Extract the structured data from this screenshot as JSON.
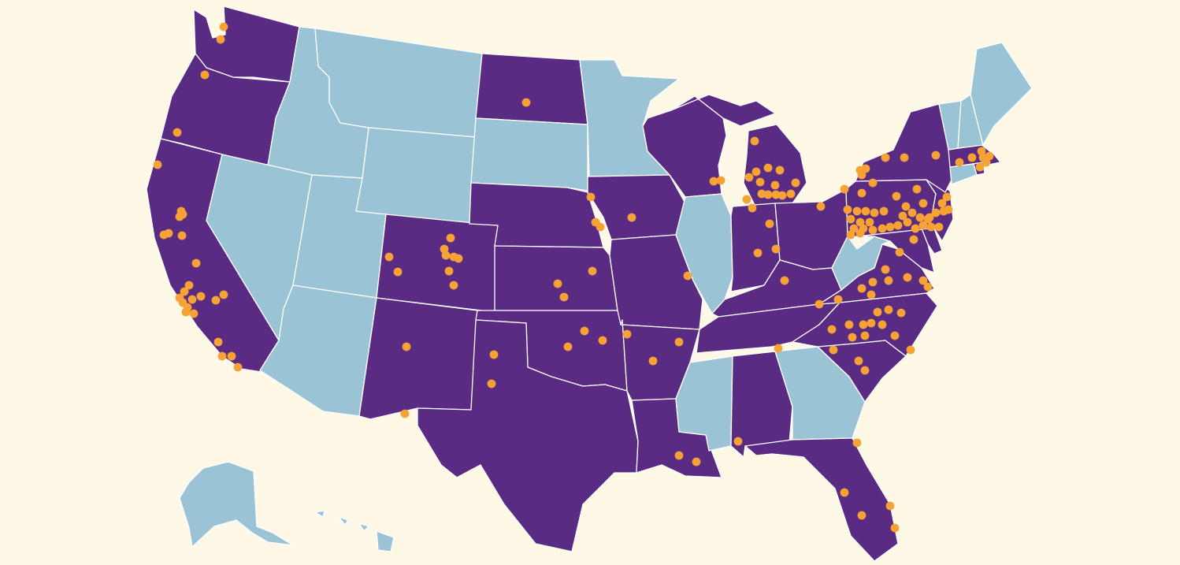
{
  "map": {
    "colors": {
      "background": "#fef9e7",
      "highlighted_state": "#5a2b82",
      "other_state": "#9ac4d6",
      "state_border": "#ffffff",
      "marker": "#f7a234"
    },
    "highlighted_states": [
      "WA",
      "OR",
      "CA",
      "ND",
      "CO",
      "NM",
      "NE",
      "KS",
      "OK",
      "TX",
      "IA",
      "MO",
      "AR",
      "LA",
      "WI",
      "MI",
      "IN",
      "OH",
      "KY",
      "TN",
      "AL",
      "FL",
      "SC",
      "NC",
      "VA",
      "MD",
      "DE",
      "NJ",
      "PA",
      "NY",
      "MA",
      "RI"
    ],
    "other_states": [
      "ID",
      "MT",
      "WY",
      "SD",
      "MN",
      "NV",
      "UT",
      "AZ",
      "IL",
      "MS",
      "GA",
      "WV",
      "VT",
      "NH",
      "ME",
      "CT",
      "AK",
      "HI"
    ],
    "marker_shape": "circle"
  }
}
